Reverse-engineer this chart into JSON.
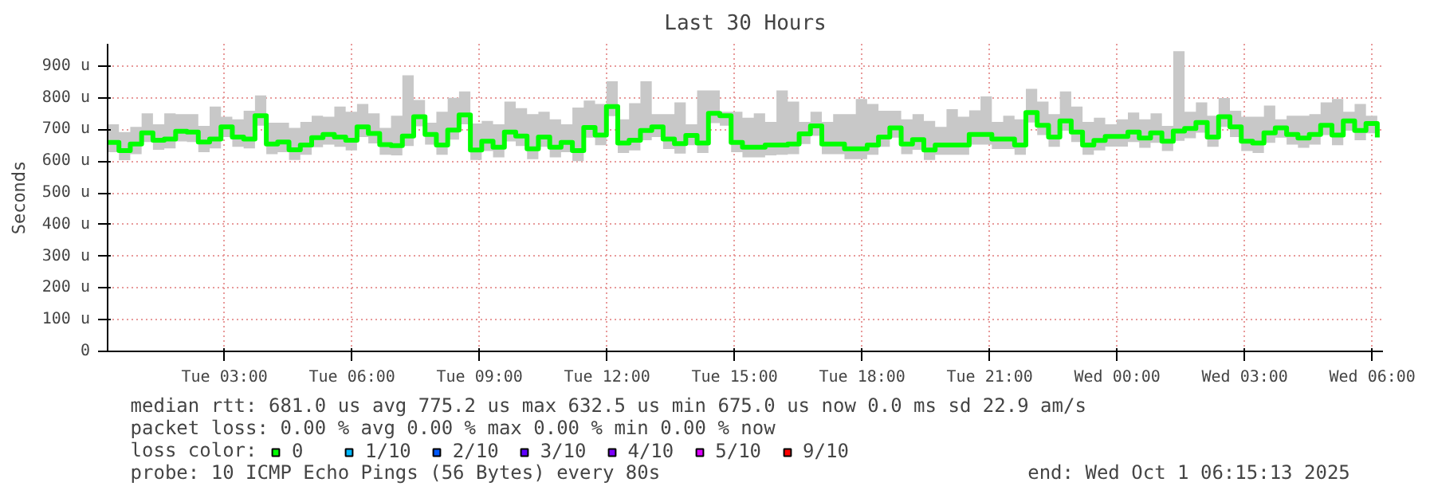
{
  "chart_data": {
    "type": "step",
    "title": "Last 30 Hours",
    "ylabel": "Seconds",
    "xlim": [
      "2025-09-30T00:15",
      "2025-10-01T06:15"
    ],
    "ylim": [
      0,
      970
    ],
    "xticks": [
      {
        "value": "2025-09-30T03:00",
        "label": "Tue 03:00"
      },
      {
        "value": "2025-09-30T06:00",
        "label": "Tue 06:00"
      },
      {
        "value": "2025-09-30T09:00",
        "label": "Tue 09:00"
      },
      {
        "value": "2025-09-30T12:00",
        "label": "Tue 12:00"
      },
      {
        "value": "2025-09-30T15:00",
        "label": "Tue 15:00"
      },
      {
        "value": "2025-09-30T18:00",
        "label": "Tue 18:00"
      },
      {
        "value": "2025-09-30T21:00",
        "label": "Tue 21:00"
      },
      {
        "value": "2025-10-01T00:00",
        "label": "Wed 00:00"
      },
      {
        "value": "2025-10-01T03:00",
        "label": "Wed 03:00"
      },
      {
        "value": "2025-10-01T06:00",
        "label": "Wed 06:00"
      }
    ],
    "yticks": [
      0,
      {
        "value": 100,
        "label": "100 u"
      },
      {
        "value": 200,
        "label": "200 u"
      },
      {
        "value": 300,
        "label": "300 u"
      },
      {
        "value": 400,
        "label": "400 u"
      },
      {
        "value": 500,
        "label": "500 u"
      },
      {
        "value": 600,
        "label": "600 u"
      },
      {
        "value": 700,
        "label": "700 u"
      },
      {
        "value": 800,
        "label": "800 u"
      },
      {
        "value": 900,
        "label": "900 u"
      }
    ],
    "grid": true,
    "legend": "bottom",
    "x": [
      "2025-09-30T00:15",
      "2025-09-30T00:31",
      "2025-09-30T00:47",
      "2025-09-30T01:03",
      "2025-09-30T01:19",
      "2025-09-30T01:35",
      "2025-09-30T01:51",
      "2025-09-30T02:07",
      "2025-09-30T02:23",
      "2025-09-30T02:39",
      "2025-09-30T02:55",
      "2025-09-30T03:11",
      "2025-09-30T03:27",
      "2025-09-30T03:43",
      "2025-09-30T03:59",
      "2025-09-30T04:15",
      "2025-09-30T04:31",
      "2025-09-30T04:47",
      "2025-09-30T05:03",
      "2025-09-30T05:19",
      "2025-09-30T05:35",
      "2025-09-30T05:51",
      "2025-09-30T06:07",
      "2025-09-30T06:23",
      "2025-09-30T06:39",
      "2025-09-30T06:55",
      "2025-09-30T07:11",
      "2025-09-30T07:27",
      "2025-09-30T07:43",
      "2025-09-30T07:59",
      "2025-09-30T08:15",
      "2025-09-30T08:31",
      "2025-09-30T08:47",
      "2025-09-30T09:03",
      "2025-09-30T09:19",
      "2025-09-30T09:35",
      "2025-09-30T09:51",
      "2025-09-30T10:07",
      "2025-09-30T10:23",
      "2025-09-30T10:39",
      "2025-09-30T10:55",
      "2025-09-30T11:11",
      "2025-09-30T11:27",
      "2025-09-30T11:43",
      "2025-09-30T11:59",
      "2025-09-30T12:15",
      "2025-09-30T12:31",
      "2025-09-30T12:47",
      "2025-09-30T13:03",
      "2025-09-30T13:19",
      "2025-09-30T13:35",
      "2025-09-30T13:51",
      "2025-09-30T14:07",
      "2025-09-30T14:23",
      "2025-09-30T14:39",
      "2025-09-30T14:55",
      "2025-09-30T15:11",
      "2025-09-30T15:27",
      "2025-09-30T15:43",
      "2025-09-30T15:59",
      "2025-09-30T16:15",
      "2025-09-30T16:31",
      "2025-09-30T16:47",
      "2025-09-30T17:03",
      "2025-09-30T17:19",
      "2025-09-30T17:35",
      "2025-09-30T17:51",
      "2025-09-30T18:07",
      "2025-09-30T18:23",
      "2025-09-30T18:39",
      "2025-09-30T18:55",
      "2025-09-30T19:11",
      "2025-09-30T19:27",
      "2025-09-30T19:43",
      "2025-09-30T19:59",
      "2025-09-30T20:15",
      "2025-09-30T20:31",
      "2025-09-30T20:47",
      "2025-09-30T21:03",
      "2025-09-30T21:19",
      "2025-09-30T21:35",
      "2025-09-30T21:51",
      "2025-09-30T22:07",
      "2025-09-30T22:23",
      "2025-09-30T22:39",
      "2025-09-30T22:55",
      "2025-09-30T23:11",
      "2025-09-30T23:27",
      "2025-09-30T23:43",
      "2025-09-30T23:59",
      "2025-10-01T00:15",
      "2025-10-01T00:31",
      "2025-10-01T00:47",
      "2025-10-01T01:03",
      "2025-10-01T01:19",
      "2025-10-01T01:35",
      "2025-10-01T01:51",
      "2025-10-01T02:07",
      "2025-10-01T02:23",
      "2025-10-01T02:39",
      "2025-10-01T02:55",
      "2025-10-01T03:11",
      "2025-10-01T03:27",
      "2025-10-01T03:43",
      "2025-10-01T03:59",
      "2025-10-01T04:15",
      "2025-10-01T04:31",
      "2025-10-01T04:47",
      "2025-10-01T05:03",
      "2025-10-01T05:19",
      "2025-10-01T05:35",
      "2025-10-01T05:51",
      "2025-10-01T06:07"
    ],
    "series": [
      {
        "name": "0",
        "color": "#00ff00",
        "values": [
          659,
          633,
          654,
          689,
          666,
          670,
          694,
          692,
          660,
          670,
          708,
          676,
          670,
          743,
          654,
          660,
          636,
          651,
          674,
          684,
          676,
          666,
          708,
          687,
          652,
          649,
          679,
          740,
          684,
          651,
          698,
          746,
          635,
          663,
          644,
          692,
          679,
          639,
          676,
          644,
          659,
          633,
          706,
          682,
          772,
          657,
          666,
          697,
          708,
          670,
          655,
          681,
          657,
          751,
          743,
          659,
          644,
          644,
          651,
          651,
          654,
          686,
          711,
          654,
          654,
          639,
          639,
          651,
          676,
          705,
          654,
          668,
          635,
          651,
          651,
          651,
          684,
          684,
          670,
          670,
          651,
          753,
          713,
          676,
          727,
          692,
          651,
          665,
          678,
          678,
          692,
          673,
          689,
          663,
          695,
          703,
          722,
          676,
          740,
          708,
          663,
          657,
          689,
          705,
          684,
          673,
          684,
          713,
          682,
          727,
          697,
          719,
          675
        ],
        "lower": [
          628,
          603,
          622,
          660,
          636,
          640,
          662,
          660,
          628,
          640,
          676,
          645,
          640,
          712,
          622,
          628,
          604,
          620,
          644,
          652,
          645,
          634,
          676,
          656,
          620,
          618,
          648,
          710,
          652,
          620,
          668,
          716,
          604,
          632,
          612,
          662,
          648,
          606,
          645,
          612,
          628,
          600,
          674,
          650,
          742,
          626,
          634,
          666,
          676,
          638,
          624,
          650,
          626,
          720,
          712,
          628,
          612,
          612,
          618,
          620,
          622,
          654,
          680,
          622,
          622,
          606,
          606,
          620,
          645,
          674,
          622,
          636,
          604,
          620,
          620,
          620,
          652,
          652,
          638,
          638,
          620,
          722,
          682,
          645,
          696,
          660,
          620,
          634,
          646,
          646,
          660,
          642,
          658,
          632,
          664,
          672,
          690,
          645,
          708,
          676,
          632,
          626,
          658,
          674,
          652,
          642,
          652,
          682,
          650,
          696,
          666,
          688,
          642
        ],
        "upper": [
          716,
          692,
          708,
          751,
          716,
          751,
          748,
          748,
          711,
          772,
          740,
          732,
          759,
          807,
          721,
          721,
          705,
          724,
          743,
          740,
          772,
          756,
          780,
          751,
          705,
          743,
          871,
          793,
          721,
          756,
          800,
          820,
          719,
          727,
          716,
          788,
          767,
          748,
          756,
          732,
          716,
          769,
          791,
          780,
          852,
          732,
          783,
          852,
          748,
          748,
          785,
          716,
          823,
          823,
          756,
          756,
          737,
          751,
          724,
          823,
          788,
          724,
          756,
          724,
          748,
          748,
          796,
          780,
          759,
          759,
          732,
          748,
          727,
          708,
          764,
          740,
          760,
          804,
          724,
          743,
          732,
          828,
          788,
          748,
          820,
          772,
          724,
          737,
          716,
          732,
          753,
          732,
          751,
          711,
          947,
          756,
          785,
          743,
          799,
          759,
          740,
          740,
          775,
          732,
          743,
          743,
          748,
          785,
          796,
          756,
          780,
          743,
          760
        ]
      },
      {
        "name": "1/10",
        "color": "#00b8ff",
        "values": [
          null,
          null,
          null,
          null,
          null,
          null,
          null,
          null,
          null,
          null,
          null,
          null,
          null,
          null,
          null,
          null,
          null,
          null,
          null,
          null,
          null,
          null,
          null,
          null,
          null,
          null,
          null,
          null,
          null,
          null,
          null,
          null,
          null,
          null,
          null,
          null,
          null,
          null,
          null,
          null,
          null,
          null,
          null,
          null,
          null,
          null,
          null,
          null,
          null,
          null,
          null,
          null,
          null,
          null,
          null,
          null,
          null,
          null,
          null,
          null,
          null,
          null,
          null,
          null,
          null,
          null,
          null,
          null,
          null,
          null,
          null,
          null,
          null,
          null,
          null,
          null,
          null,
          null,
          null,
          null,
          null,
          null,
          null,
          null,
          null,
          null,
          null,
          null,
          null,
          null,
          null,
          null,
          null,
          null,
          null,
          null,
          null,
          null,
          null,
          null,
          null,
          null,
          null,
          null,
          null,
          null,
          null,
          null,
          null,
          null,
          null,
          null,
          null
        ]
      },
      {
        "name": "2/10",
        "color": "#0059ff",
        "values": [
          null,
          null,
          null,
          null,
          null,
          null,
          null,
          null,
          null,
          null,
          null,
          null,
          null,
          null,
          null,
          null,
          null,
          null,
          null,
          null,
          null,
          null,
          null,
          null,
          null,
          null,
          null,
          null,
          null,
          null,
          null,
          null,
          null,
          null,
          null,
          null,
          null,
          null,
          null,
          null,
          null,
          null,
          null,
          null,
          null,
          null,
          null,
          null,
          null,
          null,
          null,
          null,
          null,
          null,
          null,
          null,
          null,
          null,
          null,
          null,
          null,
          null,
          null,
          null,
          null,
          null,
          null,
          null,
          null,
          null,
          null,
          null,
          null,
          null,
          null,
          null,
          null,
          null,
          null,
          null,
          null,
          null,
          null,
          null,
          null,
          null,
          null,
          null,
          null,
          null,
          null,
          null,
          null,
          null,
          null,
          null,
          null,
          null,
          null,
          null,
          null,
          null,
          null,
          null,
          null,
          null,
          null,
          null,
          null,
          null,
          null,
          null,
          null
        ]
      },
      {
        "name": "3/10",
        "color": "#5e00ff",
        "values": [
          null,
          null,
          null,
          null,
          null,
          null,
          null,
          null,
          null,
          null,
          null,
          null,
          null,
          null,
          null,
          null,
          null,
          null,
          null,
          null,
          null,
          null,
          null,
          null,
          null,
          null,
          null,
          null,
          null,
          null,
          null,
          null,
          null,
          null,
          null,
          null,
          null,
          null,
          null,
          null,
          null,
          null,
          null,
          null,
          null,
          null,
          null,
          null,
          null,
          null,
          null,
          null,
          null,
          null,
          null,
          null,
          null,
          null,
          null,
          null,
          null,
          null,
          null,
          null,
          null,
          null,
          null,
          null,
          null,
          null,
          null,
          null,
          null,
          null,
          null,
          null,
          null,
          null,
          null,
          null,
          null,
          null,
          null,
          null,
          null,
          null,
          null,
          null,
          null,
          null,
          null,
          null,
          null,
          null,
          null,
          null,
          null,
          null,
          null,
          null,
          null,
          null,
          null,
          null,
          null,
          null,
          null,
          null,
          null,
          null,
          null,
          null,
          null
        ]
      },
      {
        "name": "4/10",
        "color": "#7e00ff",
        "values": [
          null,
          null,
          null,
          null,
          null,
          null,
          null,
          null,
          null,
          null,
          null,
          null,
          null,
          null,
          null,
          null,
          null,
          null,
          null,
          null,
          null,
          null,
          null,
          null,
          null,
          null,
          null,
          null,
          null,
          null,
          null,
          null,
          null,
          null,
          null,
          null,
          null,
          null,
          null,
          null,
          null,
          null,
          null,
          null,
          null,
          null,
          null,
          null,
          null,
          null,
          null,
          null,
          null,
          null,
          null,
          null,
          null,
          null,
          null,
          null,
          null,
          null,
          null,
          null,
          null,
          null,
          null,
          null,
          null,
          null,
          null,
          null,
          null,
          null,
          null,
          null,
          null,
          null,
          null,
          null,
          null,
          null,
          null,
          null,
          null,
          null,
          null,
          null,
          null,
          null,
          null,
          null,
          null,
          null,
          null,
          null,
          null,
          null,
          null,
          null,
          null,
          null,
          null,
          null,
          null,
          null,
          null,
          null,
          null,
          null,
          null,
          null,
          null
        ]
      },
      {
        "name": "5/10",
        "color": "#dd00ff",
        "values": [
          null,
          null,
          null,
          null,
          null,
          null,
          null,
          null,
          null,
          null,
          null,
          null,
          null,
          null,
          null,
          null,
          null,
          null,
          null,
          null,
          null,
          null,
          null,
          null,
          null,
          null,
          null,
          null,
          null,
          null,
          null,
          null,
          null,
          null,
          null,
          null,
          null,
          null,
          null,
          null,
          null,
          null,
          null,
          null,
          null,
          null,
          null,
          null,
          null,
          null,
          null,
          null,
          null,
          null,
          null,
          null,
          null,
          null,
          null,
          null,
          null,
          null,
          null,
          null,
          null,
          null,
          null,
          null,
          null,
          null,
          null,
          null,
          null,
          null,
          null,
          null,
          null,
          null,
          null,
          null,
          null,
          null,
          null,
          null,
          null,
          null,
          null,
          null,
          null,
          null,
          null,
          null,
          null,
          null,
          null,
          null,
          null,
          null,
          null,
          null,
          null,
          null,
          null,
          null,
          null,
          null,
          null,
          null,
          null,
          null,
          null,
          null,
          null
        ]
      },
      {
        "name": "9/10",
        "color": "#ff0000",
        "values": [
          null,
          null,
          null,
          null,
          null,
          null,
          null,
          null,
          null,
          null,
          null,
          null,
          null,
          null,
          null,
          null,
          null,
          null,
          null,
          null,
          null,
          null,
          null,
          null,
          null,
          null,
          null,
          null,
          null,
          null,
          null,
          null,
          null,
          null,
          null,
          null,
          null,
          null,
          null,
          null,
          null,
          null,
          null,
          null,
          null,
          null,
          null,
          null,
          null,
          null,
          null,
          null,
          null,
          null,
          null,
          null,
          null,
          null,
          null,
          null,
          null,
          null,
          null,
          null,
          null,
          null,
          null,
          null,
          null,
          null,
          null,
          null,
          null,
          null,
          null,
          null,
          null,
          null,
          null,
          null,
          null,
          null,
          null,
          null,
          null,
          null,
          null,
          null,
          null,
          null,
          null,
          null,
          null,
          null,
          null,
          null,
          null,
          null,
          null,
          null,
          null,
          null,
          null,
          null,
          null,
          null,
          null,
          null,
          null,
          null,
          null,
          null,
          null
        ]
      }
    ],
    "annotations": [
      "median rtt:  681.0 us avg  775.2 us max  632.5 us min  675.0 us now  0.0 ms sd  22.9   am/s",
      "packet loss: 0.00 % avg  0.00 % max  0.00 % min  0.00 % now",
      "loss color:",
      "probe:       10 ICMP Echo Pings (56 Bytes) every 80s",
      "end: Wed Oct  1 06:15:13 2025"
    ]
  }
}
